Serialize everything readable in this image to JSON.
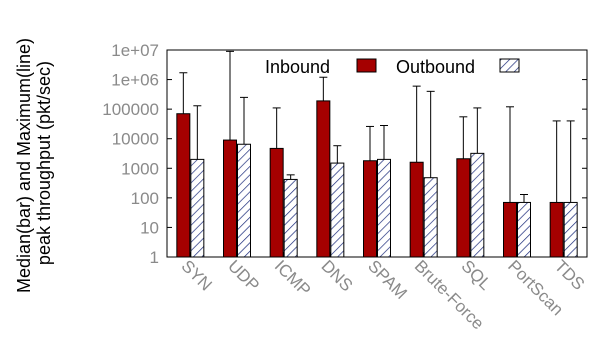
{
  "chart_data": {
    "type": "bar",
    "yscale": "log",
    "ylim": [
      1,
      10000000
    ],
    "yticks": [
      "1",
      "10",
      "100",
      "1000",
      "10000",
      "100000",
      "1e+06",
      "1e+07"
    ],
    "ylabel_lines": [
      "Median(bar) and Maximum(line)",
      "peak throughput (pkt/sec)"
    ],
    "categories": [
      "SYN",
      "UDP",
      "ICMP",
      "DNS",
      "SPAM",
      "Brute-Force",
      "SQL",
      "PortScan",
      "TDS"
    ],
    "series": [
      {
        "name": "Inbound",
        "color": "#a50000",
        "pattern": "solid",
        "values": [
          70000,
          9000,
          4700,
          190000,
          1800,
          1600,
          2100,
          70,
          70
        ],
        "max": [
          1700000,
          9000000,
          110000,
          1200000,
          26000,
          600000,
          55000,
          120000,
          40000
        ]
      },
      {
        "name": "Outbound",
        "color": "#1a2a7a",
        "pattern": "hatched",
        "values": [
          2000,
          6500,
          420,
          1500,
          2000,
          480,
          3200,
          70,
          70
        ],
        "max": [
          130000,
          250000,
          600,
          5800,
          28000,
          400000,
          110000,
          130,
          40000
        ]
      }
    ],
    "legend_position": "top-right",
    "grid": false
  }
}
